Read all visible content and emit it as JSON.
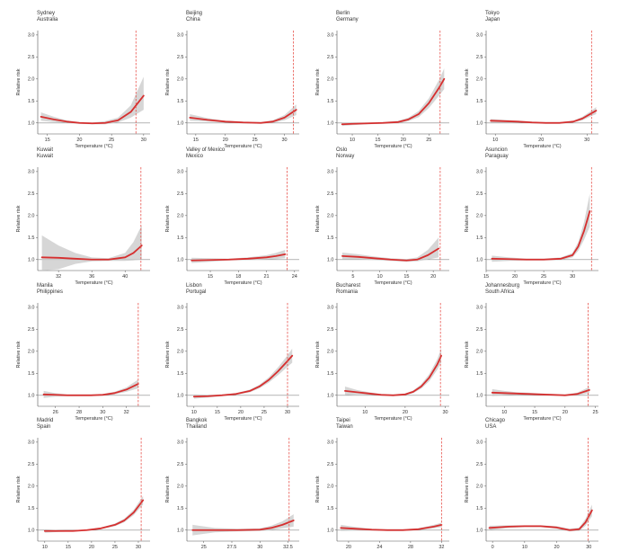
{
  "colors": {
    "curve": "#d62f2f",
    "band": "#c8c8c8",
    "threshold": "#e8544e",
    "reference": "#888888",
    "axis": "#555555",
    "background": "#ffffff"
  },
  "chart_data": [
    {
      "type": "line",
      "city": "Sydney",
      "country": "Australia",
      "xlabel": "Temperature (°C)",
      "ylabel": "Relative risk",
      "xlim": [
        13.5,
        31
      ],
      "ylim": [
        0.75,
        3.1
      ],
      "xticks": [
        15,
        20,
        25,
        30
      ],
      "yticks": [
        1.0,
        1.5,
        2.0,
        2.5,
        3.0
      ],
      "threshold": 28.8,
      "series": [
        {
          "x": [
            14,
            16,
            18,
            20,
            22,
            24,
            26,
            28,
            30
          ],
          "values": [
            1.14,
            1.08,
            1.03,
            1.0,
            0.99,
            1.0,
            1.06,
            1.25,
            1.62
          ],
          "lower": [
            1.05,
            1.02,
            1.0,
            0.98,
            0.97,
            0.97,
            1.01,
            1.12,
            1.3
          ],
          "upper": [
            1.24,
            1.14,
            1.06,
            1.02,
            1.01,
            1.04,
            1.12,
            1.4,
            2.05
          ]
        }
      ]
    },
    {
      "type": "line",
      "city": "Beijing",
      "country": "China",
      "xlabel": "Temperature (°C)",
      "ylabel": "Relative risk",
      "xlim": [
        13.5,
        32.5
      ],
      "ylim": [
        0.75,
        3.1
      ],
      "xticks": [
        15,
        20,
        25,
        30
      ],
      "yticks": [
        1.0,
        1.5,
        2.0,
        2.5,
        3.0
      ],
      "threshold": 31.5,
      "series": [
        {
          "x": [
            14,
            17,
            20,
            23,
            26,
            28,
            30,
            32
          ],
          "values": [
            1.12,
            1.07,
            1.03,
            1.01,
            1.0,
            1.03,
            1.12,
            1.3
          ],
          "lower": [
            1.05,
            1.03,
            1.01,
            0.99,
            0.98,
            1.0,
            1.06,
            1.18
          ],
          "upper": [
            1.2,
            1.11,
            1.05,
            1.03,
            1.02,
            1.06,
            1.18,
            1.42
          ]
        }
      ]
    },
    {
      "type": "line",
      "city": "Berlin",
      "country": "Germany",
      "xlabel": "Temperature (°C)",
      "ylabel": "Relative risk",
      "xlim": [
        7,
        29
      ],
      "ylim": [
        0.75,
        3.1
      ],
      "xticks": [
        10,
        15,
        20,
        25
      ],
      "yticks": [
        1.0,
        1.5,
        2.0,
        2.5,
        3.0
      ],
      "threshold": 27.2,
      "series": [
        {
          "x": [
            8,
            10,
            13,
            16,
            19,
            21,
            23,
            25,
            27,
            28
          ],
          "values": [
            0.97,
            0.98,
            0.99,
            1.0,
            1.02,
            1.08,
            1.2,
            1.45,
            1.8,
            2.0
          ],
          "lower": [
            0.93,
            0.95,
            0.97,
            0.98,
            0.99,
            1.04,
            1.13,
            1.34,
            1.62,
            1.77
          ],
          "upper": [
            1.01,
            1.01,
            1.01,
            1.02,
            1.05,
            1.12,
            1.27,
            1.56,
            1.98,
            2.24
          ]
        }
      ]
    },
    {
      "type": "line",
      "city": "Tokyo",
      "country": "Japan",
      "xlabel": "Temperature (°C)",
      "ylabel": "Relative risk",
      "xlim": [
        8,
        32.5
      ],
      "ylim": [
        0.75,
        3.1
      ],
      "xticks": [
        10,
        20,
        30
      ],
      "yticks": [
        1.0,
        1.5,
        2.0,
        2.5,
        3.0
      ],
      "threshold": 31.0,
      "series": [
        {
          "x": [
            9,
            12,
            15,
            18,
            21,
            24,
            27,
            29,
            31,
            32
          ],
          "values": [
            1.05,
            1.04,
            1.03,
            1.01,
            1.0,
            1.0,
            1.03,
            1.1,
            1.22,
            1.28
          ],
          "lower": [
            1.01,
            1.01,
            1.01,
            0.99,
            0.98,
            0.98,
            1.01,
            1.06,
            1.16,
            1.2
          ],
          "upper": [
            1.09,
            1.07,
            1.05,
            1.03,
            1.02,
            1.02,
            1.05,
            1.14,
            1.28,
            1.36
          ]
        }
      ]
    },
    {
      "type": "line",
      "city": "Kuwait",
      "country": "Kuwait",
      "xlabel": "Temperature (°C)",
      "ylabel": "Relative risk",
      "xlim": [
        29.5,
        43
      ],
      "ylim": [
        0.75,
        3.1
      ],
      "xticks": [
        32,
        36,
        40
      ],
      "yticks": [
        1.0,
        1.5,
        2.0,
        2.5,
        3.0
      ],
      "threshold": 41.9,
      "series": [
        {
          "x": [
            30,
            32,
            34,
            36,
            38,
            40,
            41,
            42
          ],
          "values": [
            1.05,
            1.04,
            1.02,
            1.0,
            1.0,
            1.05,
            1.15,
            1.32
          ],
          "lower": [
            0.6,
            0.78,
            0.9,
            0.96,
            0.97,
            0.97,
            0.98,
            1.0
          ],
          "upper": [
            1.55,
            1.32,
            1.15,
            1.05,
            1.03,
            1.15,
            1.4,
            1.78
          ]
        }
      ]
    },
    {
      "type": "line",
      "city": "Valley of Mexico",
      "country": "Mexico",
      "xlabel": "Temperature (°C)",
      "ylabel": "Relative risk",
      "xlim": [
        12.5,
        24.5
      ],
      "ylim": [
        0.75,
        3.1
      ],
      "xticks": [
        15,
        18,
        21,
        24
      ],
      "yticks": [
        1.0,
        1.5,
        2.0,
        2.5,
        3.0
      ],
      "threshold": 23.2,
      "series": [
        {
          "x": [
            13,
            15,
            17,
            19,
            21,
            22,
            23
          ],
          "values": [
            0.98,
            0.99,
            1.0,
            1.02,
            1.05,
            1.08,
            1.12
          ],
          "lower": [
            0.92,
            0.95,
            0.98,
            0.99,
            1.0,
            1.01,
            1.03
          ],
          "upper": [
            1.04,
            1.03,
            1.02,
            1.05,
            1.1,
            1.15,
            1.22
          ]
        }
      ]
    },
    {
      "type": "line",
      "city": "Oslo",
      "country": "Norway",
      "xlabel": "Temperature (°C)",
      "ylabel": "Relative risk",
      "xlim": [
        2,
        23
      ],
      "ylim": [
        0.75,
        3.1
      ],
      "xticks": [
        5,
        10,
        15,
        20
      ],
      "yticks": [
        1.0,
        1.5,
        2.0,
        2.5,
        3.0
      ],
      "threshold": 21.3,
      "series": [
        {
          "x": [
            3,
            6,
            9,
            12,
            15,
            17,
            19,
            21
          ],
          "values": [
            1.08,
            1.06,
            1.03,
            1.0,
            0.98,
            1.0,
            1.1,
            1.25
          ],
          "lower": [
            1.0,
            1.0,
            0.99,
            0.97,
            0.95,
            0.96,
            1.0,
            1.05
          ],
          "upper": [
            1.16,
            1.12,
            1.07,
            1.03,
            1.01,
            1.05,
            1.22,
            1.5
          ]
        }
      ]
    },
    {
      "type": "line",
      "city": "Asuncion",
      "country": "Paraguay",
      "xlabel": "Temperature (°C)",
      "ylabel": "Relative risk",
      "xlim": [
        15,
        34.5
      ],
      "ylim": [
        0.75,
        3.1
      ],
      "xticks": [
        15,
        20,
        25,
        30
      ],
      "yticks": [
        1.0,
        1.5,
        2.0,
        2.5,
        3.0
      ],
      "threshold": 33.3,
      "series": [
        {
          "x": [
            16,
            19,
            22,
            25,
            28,
            30,
            31,
            32,
            33
          ],
          "values": [
            1.02,
            1.01,
            1.0,
            1.0,
            1.02,
            1.1,
            1.3,
            1.65,
            2.1
          ],
          "lower": [
            0.95,
            0.97,
            0.98,
            0.98,
            0.99,
            1.05,
            1.2,
            1.45,
            1.75
          ],
          "upper": [
            1.09,
            1.05,
            1.02,
            1.02,
            1.05,
            1.15,
            1.4,
            1.85,
            2.5
          ]
        }
      ]
    },
    {
      "type": "line",
      "city": "Manila",
      "country": "Philippines",
      "xlabel": "Temperature (°C)",
      "ylabel": "Relative risk",
      "xlim": [
        24.5,
        34
      ],
      "ylim": [
        0.75,
        3.1
      ],
      "xticks": [
        26,
        28,
        30,
        32
      ],
      "yticks": [
        1.0,
        1.5,
        2.0,
        2.5,
        3.0
      ],
      "threshold": 33.0,
      "series": [
        {
          "x": [
            25,
            26,
            27,
            28,
            29,
            30,
            31,
            32,
            33
          ],
          "values": [
            1.02,
            1.01,
            1.0,
            1.0,
            1.0,
            1.01,
            1.05,
            1.13,
            1.26
          ],
          "lower": [
            0.94,
            0.97,
            0.98,
            0.98,
            0.98,
            0.99,
            1.02,
            1.08,
            1.16
          ],
          "upper": [
            1.1,
            1.05,
            1.02,
            1.02,
            1.02,
            1.03,
            1.08,
            1.18,
            1.36
          ]
        }
      ]
    },
    {
      "type": "line",
      "city": "Lisbon",
      "country": "Portugal",
      "xlabel": "Temperature (°C)",
      "ylabel": "Relative risk",
      "xlim": [
        8.5,
        32.5
      ],
      "ylim": [
        0.75,
        3.1
      ],
      "xticks": [
        10,
        15,
        20,
        25,
        30
      ],
      "yticks": [
        1.0,
        1.5,
        2.0,
        2.5,
        3.0
      ],
      "threshold": 30.0,
      "series": [
        {
          "x": [
            10,
            13,
            16,
            19,
            22,
            24,
            26,
            28,
            30,
            31
          ],
          "values": [
            0.97,
            0.98,
            1.0,
            1.03,
            1.1,
            1.2,
            1.35,
            1.55,
            1.78,
            1.9
          ],
          "lower": [
            0.92,
            0.95,
            0.98,
            1.01,
            1.07,
            1.16,
            1.29,
            1.46,
            1.65,
            1.74
          ],
          "upper": [
            1.02,
            1.01,
            1.02,
            1.05,
            1.13,
            1.24,
            1.41,
            1.64,
            1.91,
            2.06
          ]
        }
      ]
    },
    {
      "type": "line",
      "city": "Bucharest",
      "country": "Romania",
      "xlabel": "Temperature (°C)",
      "ylabel": "Relative risk",
      "xlim": [
        3,
        31
      ],
      "ylim": [
        0.75,
        3.1
      ],
      "xticks": [
        10,
        20,
        30
      ],
      "yticks": [
        1.0,
        1.5,
        2.0,
        2.5,
        3.0
      ],
      "threshold": 28.8,
      "series": [
        {
          "x": [
            5,
            8,
            11,
            14,
            17,
            20,
            22,
            24,
            26,
            28,
            29
          ],
          "values": [
            1.1,
            1.07,
            1.04,
            1.01,
            1.0,
            1.02,
            1.08,
            1.2,
            1.4,
            1.7,
            1.9
          ],
          "lower": [
            1.0,
            1.02,
            1.01,
            0.99,
            0.98,
            1.0,
            1.05,
            1.15,
            1.32,
            1.58,
            1.74
          ],
          "upper": [
            1.2,
            1.12,
            1.07,
            1.03,
            1.02,
            1.04,
            1.11,
            1.25,
            1.48,
            1.82,
            2.06
          ]
        }
      ]
    },
    {
      "type": "line",
      "city": "Johannesburg",
      "country": "South Africa",
      "xlabel": "Temperature (°C)",
      "ylabel": "Relative risk",
      "xlim": [
        7,
        25.5
      ],
      "ylim": [
        0.75,
        3.1
      ],
      "xticks": [
        10,
        15,
        20,
        25
      ],
      "yticks": [
        1.0,
        1.5,
        2.0,
        2.5,
        3.0
      ],
      "threshold": 23.8,
      "series": [
        {
          "x": [
            8,
            10,
            12,
            14,
            16,
            18,
            20,
            22,
            24
          ],
          "values": [
            1.06,
            1.05,
            1.04,
            1.03,
            1.02,
            1.01,
            1.0,
            1.03,
            1.12
          ],
          "lower": [
            0.98,
            1.0,
            1.01,
            1.0,
            1.0,
            0.99,
            0.98,
            1.0,
            1.05
          ],
          "upper": [
            1.14,
            1.1,
            1.07,
            1.06,
            1.04,
            1.03,
            1.02,
            1.06,
            1.19
          ]
        }
      ]
    },
    {
      "type": "line",
      "city": "Madrid",
      "country": "Spain",
      "xlabel": "Temperature (°C)",
      "ylabel": "Relative risk",
      "xlim": [
        8.5,
        32.5
      ],
      "ylim": [
        0.75,
        3.1
      ],
      "xticks": [
        10,
        15,
        20,
        25,
        30
      ],
      "yticks": [
        1.0,
        1.5,
        2.0,
        2.5,
        3.0
      ],
      "threshold": 30.6,
      "series": [
        {
          "x": [
            10,
            13,
            16,
            19,
            22,
            25,
            27,
            29,
            31
          ],
          "values": [
            0.98,
            0.98,
            0.98,
            1.0,
            1.04,
            1.12,
            1.22,
            1.4,
            1.68
          ],
          "lower": [
            0.94,
            0.96,
            0.97,
            0.99,
            1.02,
            1.09,
            1.18,
            1.34,
            1.58
          ],
          "upper": [
            1.02,
            1.0,
            0.99,
            1.01,
            1.06,
            1.15,
            1.26,
            1.46,
            1.78
          ]
        }
      ]
    },
    {
      "type": "line",
      "city": "Bangkok",
      "country": "Thailand",
      "xlabel": "Temperature (°C)",
      "ylabel": "Relative risk",
      "xlim": [
        23.5,
        33.5
      ],
      "ylim": [
        0.75,
        3.1
      ],
      "xticks": [
        25.0,
        27.5,
        30.0,
        32.5
      ],
      "yticks": [
        1.0,
        1.5,
        2.0,
        2.5,
        3.0
      ],
      "threshold": 32.6,
      "series": [
        {
          "x": [
            24,
            26,
            28,
            30,
            31,
            32,
            33
          ],
          "values": [
            1.0,
            1.0,
            1.0,
            1.01,
            1.05,
            1.12,
            1.22
          ],
          "lower": [
            0.88,
            0.95,
            0.97,
            0.98,
            1.0,
            1.04,
            1.08
          ],
          "upper": [
            1.12,
            1.05,
            1.03,
            1.04,
            1.1,
            1.2,
            1.36
          ]
        }
      ]
    },
    {
      "type": "line",
      "city": "Taipei",
      "country": "Taiwan",
      "xlabel": "Temperature (°C)",
      "ylabel": "Relative risk",
      "xlim": [
        18.5,
        33
      ],
      "ylim": [
        0.75,
        3.1
      ],
      "xticks": [
        20,
        24,
        28,
        32
      ],
      "yticks": [
        1.0,
        1.5,
        2.0,
        2.5,
        3.0
      ],
      "threshold": 32.0,
      "series": [
        {
          "x": [
            19,
            21,
            23,
            25,
            27,
            29,
            31,
            32
          ],
          "values": [
            1.05,
            1.03,
            1.01,
            1.0,
            1.0,
            1.02,
            1.08,
            1.12
          ],
          "lower": [
            0.98,
            0.99,
            0.99,
            0.98,
            0.98,
            1.0,
            1.04,
            1.07
          ],
          "upper": [
            1.12,
            1.07,
            1.03,
            1.02,
            1.02,
            1.04,
            1.12,
            1.17
          ]
        }
      ]
    },
    {
      "type": "line",
      "city": "Chicago",
      "country": "USA",
      "xlabel": "Temperature (°C)",
      "ylabel": "Relative risk",
      "xlim": [
        -2,
        33
      ],
      "ylim": [
        0.75,
        3.1
      ],
      "xticks": [
        0,
        10,
        20,
        30
      ],
      "yticks": [
        1.0,
        1.5,
        2.0,
        2.5,
        3.0
      ],
      "threshold": 29.8,
      "series": [
        {
          "x": [
            -1,
            5,
            10,
            15,
            20,
            24,
            27,
            29,
            31
          ],
          "values": [
            1.05,
            1.08,
            1.09,
            1.09,
            1.06,
            1.0,
            1.02,
            1.18,
            1.45
          ],
          "lower": [
            1.0,
            1.05,
            1.07,
            1.07,
            1.03,
            0.97,
            0.98,
            1.1,
            1.32
          ],
          "upper": [
            1.1,
            1.11,
            1.11,
            1.11,
            1.09,
            1.03,
            1.06,
            1.26,
            1.58
          ]
        }
      ]
    }
  ]
}
